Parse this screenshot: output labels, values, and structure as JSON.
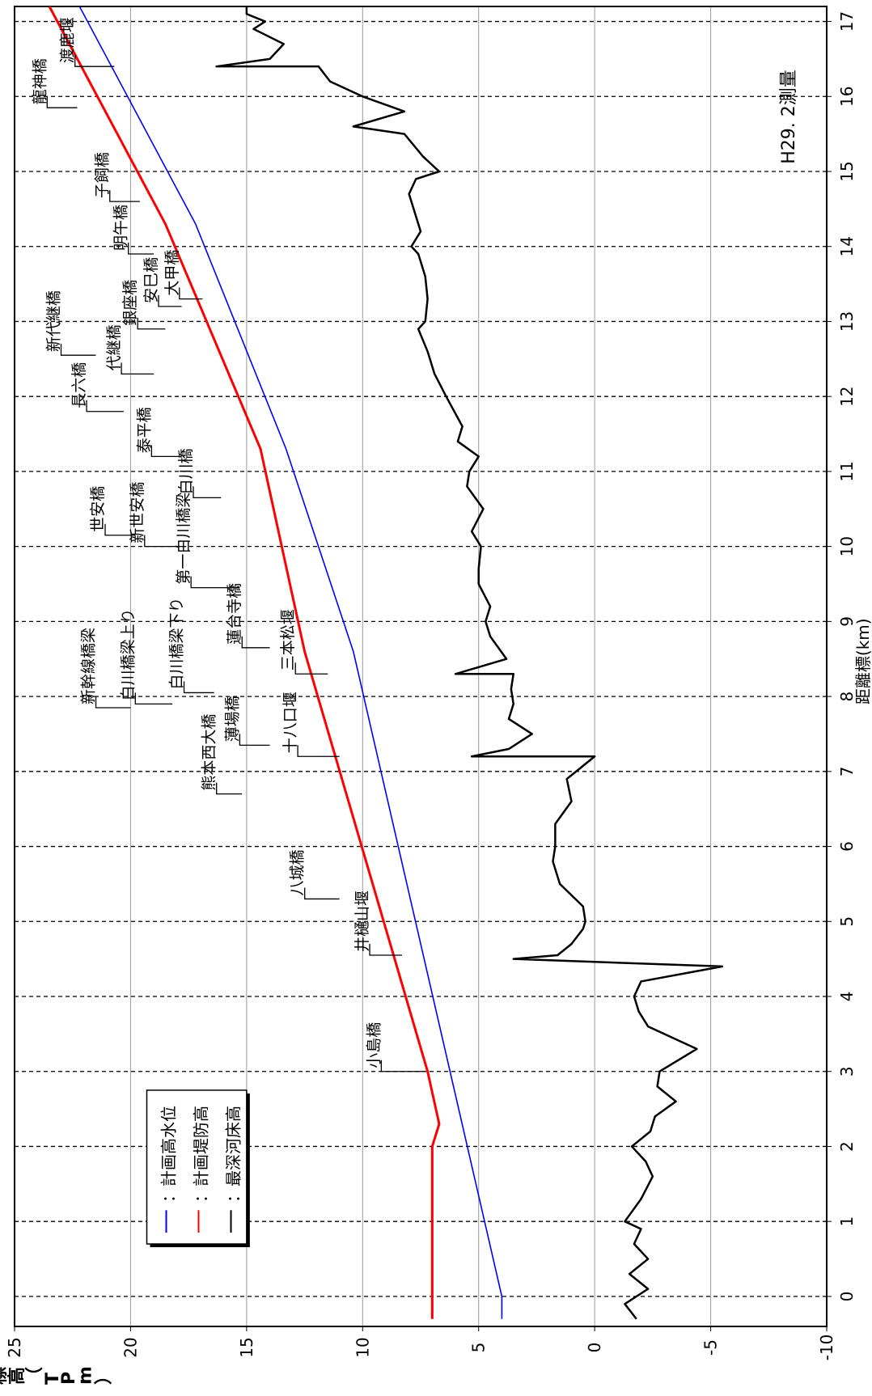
{
  "chart_data": {
    "type": "line",
    "x_label": "距離標(km)",
    "y_label": "標高（T.P.m）",
    "annotation": "H29. 2測量",
    "xlim": [
      -0.4,
      17.2
    ],
    "xticks": [
      0,
      1,
      2,
      3,
      4,
      5,
      6,
      7,
      8,
      9,
      10,
      11,
      12,
      13,
      14,
      15,
      16,
      17
    ],
    "ylim": [
      -10,
      25
    ],
    "yticks": [
      25,
      20,
      15,
      10,
      5,
      0,
      -5,
      -10
    ],
    "grid": true,
    "legend_separator": "：",
    "series": [
      {
        "name": "計画高水位",
        "color": "#0000ff",
        "x": [
          -0.3,
          0,
          8.6,
          11.3,
          14.3,
          17.2
        ],
        "values": [
          4.0,
          4.0,
          10.4,
          13.3,
          17.2,
          22.2
        ]
      },
      {
        "name": "計画堤防高",
        "color": "#ff0000",
        "x": [
          -0.3,
          2.0,
          2.3,
          3.0,
          8.6,
          11.3,
          14.3,
          17.2
        ],
        "values": [
          7.0,
          7.0,
          6.7,
          7.2,
          12.5,
          14.4,
          18.5,
          23.5
        ]
      },
      {
        "name": "最深河床高",
        "color": "#000000",
        "x": [
          -0.3,
          -0.1,
          0.1,
          0.3,
          0.5,
          0.7,
          0.9,
          1.0,
          1.3,
          1.6,
          1.8,
          2.0,
          2.2,
          2.4,
          2.6,
          2.8,
          3.0,
          3.3,
          3.6,
          3.8,
          4.0,
          4.2,
          4.4,
          4.5,
          4.55,
          4.7,
          4.9,
          5.0,
          5.2,
          5.5,
          5.8,
          6.0,
          6.3,
          6.6,
          6.9,
          7.2,
          7.2,
          7.3,
          7.5,
          7.7,
          7.9,
          8.1,
          8.3,
          8.3,
          8.5,
          8.8,
          9.0,
          9.2,
          9.5,
          9.7,
          10.0,
          10.2,
          10.5,
          10.8,
          11.0,
          11.2,
          11.4,
          11.6,
          12.0,
          12.3,
          12.6,
          12.9,
          13.0,
          13.3,
          13.6,
          13.9,
          14.0,
          14.2,
          14.5,
          14.7,
          14.9,
          15.0,
          15.2,
          15.5,
          15.6,
          15.8,
          16.0,
          16.2,
          16.4,
          16.4,
          16.5,
          16.7,
          16.9,
          17.0,
          17.1,
          17.2
        ],
        "values": [
          -1.8,
          -1.3,
          -2.3,
          -1.5,
          -2.3,
          -1.7,
          -2.0,
          -1.3,
          -2.0,
          -2.5,
          -2.2,
          -1.6,
          -2.4,
          -2.6,
          -3.5,
          -2.7,
          -2.8,
          -4.4,
          -2.3,
          -1.9,
          -1.7,
          -2.0,
          -5.5,
          3.5,
          1.6,
          1.0,
          0.5,
          0.4,
          0.5,
          1.5,
          1.8,
          1.7,
          1.7,
          1.0,
          1.2,
          0.0,
          5.3,
          3.7,
          2.7,
          3.7,
          3.5,
          3.6,
          3.5,
          6.0,
          3.8,
          4.5,
          4.7,
          4.5,
          5.0,
          5.0,
          4.9,
          5.3,
          4.8,
          5.5,
          5.4,
          5.0,
          5.9,
          5.7,
          6.4,
          6.9,
          7.2,
          7.6,
          7.3,
          7.2,
          7.3,
          7.6,
          7.9,
          7.5,
          7.8,
          8.0,
          7.7,
          6.7,
          7.4,
          8.2,
          10.4,
          8.2,
          10.0,
          11.4,
          11.9,
          16.3,
          14.0,
          13.4,
          14.7,
          14.2,
          15.0,
          15.0
        ]
      }
    ],
    "labels": [
      "小島橋",
      "井樋山堰",
      "八城橋",
      "熊本西大橋",
      "薄場橋",
      "十八口堰",
      "新幹線橋梁",
      "白川橋梁上り",
      "白川橋梁下り",
      "蓮台寺橋",
      "三本松堰",
      "第一白川橋梁",
      "世安橋",
      "新世安橋",
      "白川橋",
      "泰平橋",
      "長六橋",
      "代継橋",
      "新代継橋",
      "銀座橋",
      "安巳橋",
      "大甲橋",
      "明午橋",
      "子飼橋",
      "龍神橋",
      "渡鹿堰"
    ]
  }
}
